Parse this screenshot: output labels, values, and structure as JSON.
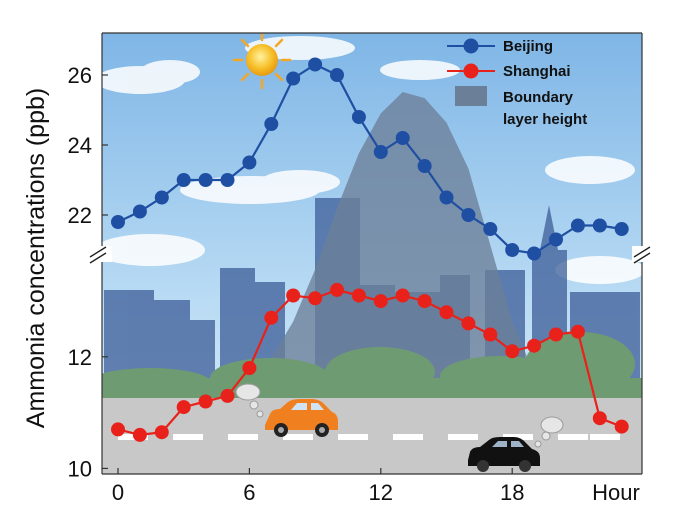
{
  "chart_data": {
    "type": "line",
    "title": "",
    "ylabel": "Ammonia concentrations  (ppb)",
    "xlabel": "Hour",
    "x": [
      0,
      1,
      2,
      3,
      4,
      5,
      6,
      7,
      8,
      9,
      10,
      11,
      12,
      13,
      14,
      15,
      16,
      17,
      18,
      19,
      20,
      21,
      22,
      23
    ],
    "xticks": [
      "0",
      "6",
      "12",
      "18"
    ],
    "xtick_values": [
      0,
      6,
      12,
      18
    ],
    "broken_y_axis": true,
    "upper_panel": {
      "ylim": [
        21,
        27.2
      ],
      "yticks": [
        "22",
        "24",
        "26"
      ],
      "ytick_values": [
        22,
        24,
        26
      ]
    },
    "lower_panel": {
      "ylim": [
        9.9,
        13.7
      ],
      "yticks": [
        "10",
        "12"
      ],
      "ytick_values": [
        10,
        12
      ]
    },
    "series": [
      {
        "name": "Beijing",
        "color": "#1f4fa3",
        "panel": "upper",
        "values": [
          21.8,
          22.1,
          22.5,
          23.0,
          23.0,
          23.0,
          23.5,
          24.6,
          25.9,
          26.3,
          26.0,
          24.8,
          23.8,
          24.2,
          23.4,
          22.5,
          22.0,
          21.6,
          21.0,
          20.9,
          21.3,
          21.7,
          21.7,
          21.6
        ]
      },
      {
        "name": "Shanghai",
        "color": "#e8221a",
        "panel": "lower",
        "values": [
          10.7,
          10.6,
          10.65,
          11.1,
          11.2,
          11.3,
          11.8,
          12.7,
          13.1,
          13.05,
          13.2,
          13.1,
          13.0,
          13.1,
          13.0,
          12.8,
          12.6,
          12.4,
          12.1,
          12.2,
          12.4,
          12.45,
          10.9,
          10.75
        ]
      }
    ],
    "legend": {
      "position": "top-right",
      "entries": [
        {
          "label": "Beijing",
          "kind": "line-marker",
          "color": "#1f4fa3"
        },
        {
          "label": "Shanghai",
          "kind": "line-marker",
          "color": "#e8221a"
        },
        {
          "label": "Boundary\nlayer height",
          "kind": "area",
          "color": "#6b7f99"
        }
      ]
    },
    "boundary_layer": {
      "label": "Boundary layer height",
      "relative_height": [
        0.0,
        0.0,
        0.0,
        0.0,
        0.0,
        0.02,
        0.06,
        0.13,
        0.25,
        0.42,
        0.62,
        0.8,
        0.93,
        1.0,
        0.98,
        0.9,
        0.75,
        0.5,
        0.25,
        0.08,
        0.02,
        0.0,
        0.0,
        0.0
      ]
    }
  }
}
